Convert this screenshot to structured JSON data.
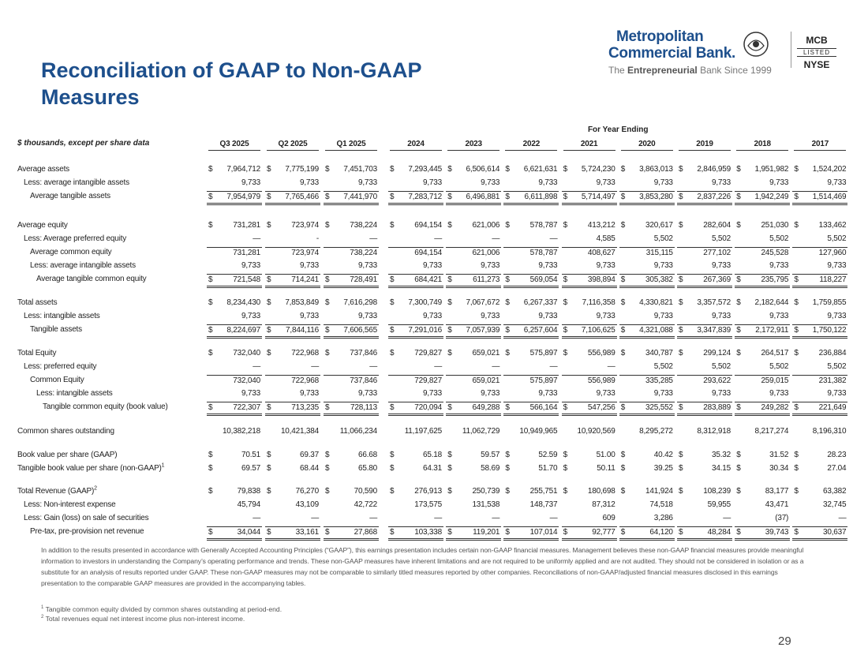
{
  "header": {
    "title": "Reconciliation of GAAP to Non-GAAP Measures",
    "logo": {
      "line1": "Metropolitan",
      "line2": "Commercial Bank.",
      "tag_pre": "The",
      "tag_bold": "Entrepreneurial",
      "tag_post": "Bank Since 1999"
    },
    "listing": [
      "MCB",
      "LISTED",
      "NYSE"
    ]
  },
  "table": {
    "units_label": "$ thousands, except per share data",
    "group_label": "For Year Ending",
    "columns": [
      "Q3 2025",
      "Q2 2025",
      "Q1 2025",
      "2024",
      "2023",
      "2022",
      "2021",
      "2020",
      "2019",
      "2018",
      "2017"
    ],
    "sections": [
      {
        "rows": [
          {
            "label": "Average assets",
            "symbol": "$",
            "values": [
              "7,964,712",
              "7,775,199",
              "7,451,703",
              "7,293,445",
              "6,506,614",
              "6,621,631",
              "5,724,230",
              "3,863,013",
              "2,846,959",
              "1,951,982",
              "1,524,202"
            ]
          },
          {
            "label": "Less: average intangible assets",
            "values": [
              "9,733",
              "9,733",
              "9,733",
              "9,733",
              "9,733",
              "9,733",
              "9,733",
              "9,733",
              "9,733",
              "9,733",
              "9,733"
            ]
          },
          {
            "label": "Average tangible assets",
            "symbol": "$",
            "values": [
              "7,954,979",
              "7,765,466",
              "7,441,970",
              "7,283,712",
              "6,496,881",
              "6,611,898",
              "5,714,497",
              "3,853,280",
              "2,837,226",
              "1,942,249",
              "1,514,469"
            ]
          }
        ]
      },
      {
        "rows": [
          {
            "label": "Average equity",
            "symbol": "$",
            "values": [
              "731,281",
              "723,974",
              "738,224",
              "694,154",
              "621,006",
              "578,787",
              "413,212",
              "320,617",
              "282,604",
              "251,030",
              "133,462"
            ]
          },
          {
            "label": "Less: Average preferred equity",
            "values": [
              "—",
              "-",
              "—",
              "—",
              "—",
              "—",
              "4,585",
              "5,502",
              "5,502",
              "5,502",
              "5,502"
            ]
          },
          {
            "label": "Average common equity",
            "values": [
              "731,281",
              "723,974",
              "738,224",
              "694,154",
              "621,006",
              "578,787",
              "408,627",
              "315,115",
              "277,102",
              "245,528",
              "127,960"
            ]
          },
          {
            "label": "Less: average intangible assets",
            "values": [
              "9,733",
              "9,733",
              "9,733",
              "9,733",
              "9,733",
              "9,733",
              "9,733",
              "9,733",
              "9,733",
              "9,733",
              "9,733"
            ]
          },
          {
            "label": "Average tangible common equity",
            "symbol": "$",
            "values": [
              "721,548",
              "714,241",
              "728,491",
              "684,421",
              "611,273",
              "569,054",
              "398,894",
              "305,382",
              "267,369",
              "235,795",
              "118,227"
            ]
          }
        ]
      },
      {
        "rows": [
          {
            "label": "Total assets",
            "symbol": "$",
            "values": [
              "8,234,430",
              "7,853,849",
              "7,616,298",
              "7,300,749",
              "7,067,672",
              "6,267,337",
              "7,116,358",
              "4,330,821",
              "3,357,572",
              "2,182,644",
              "1,759,855"
            ]
          },
          {
            "label": "Less: intangible assets",
            "values": [
              "9,733",
              "9,733",
              "9,733",
              "9,733",
              "9,733",
              "9,733",
              "9,733",
              "9,733",
              "9,733",
              "9,733",
              "9,733"
            ]
          },
          {
            "label": "Tangible assets",
            "symbol": "$",
            "values": [
              "8,224,697",
              "7,844,116",
              "7,606,565",
              "7,291,016",
              "7,057,939",
              "6,257,604",
              "7,106,625",
              "4,321,088",
              "3,347,839",
              "2,172,911",
              "1,750,122"
            ]
          }
        ]
      },
      {
        "rows": [
          {
            "label": "Total Equity",
            "symbol": "$",
            "values": [
              "732,040",
              "722,968",
              "737,846",
              "729,827",
              "659,021",
              "575,897",
              "556,989",
              "340,787",
              "299,124",
              "264,517",
              "236,884"
            ]
          },
          {
            "label": "Less: preferred equity",
            "values": [
              "—",
              "—",
              "—",
              "—",
              "—",
              "—",
              "—",
              "5,502",
              "5,502",
              "5,502",
              "5,502"
            ]
          },
          {
            "label": "Common Equity",
            "values": [
              "732,040",
              "722,968",
              "737,846",
              "729,827",
              "659,021",
              "575,897",
              "556,989",
              "335,285",
              "293,622",
              "259,015",
              "231,382"
            ]
          },
          {
            "label": "Less: intangible assets",
            "values": [
              "9,733",
              "9,733",
              "9,733",
              "9,733",
              "9,733",
              "9,733",
              "9,733",
              "9,733",
              "9,733",
              "9,733",
              "9,733"
            ]
          },
          {
            "label": "Tangible common equity (book value)",
            "symbol": "$",
            "values": [
              "722,307",
              "713,235",
              "728,113",
              "720,094",
              "649,288",
              "566,164",
              "547,256",
              "325,552",
              "283,889",
              "249,282",
              "221,649"
            ]
          }
        ]
      },
      {
        "rows": [
          {
            "label": "Common shares outstanding",
            "values": [
              "10,382,218",
              "10,421,384",
              "11,066,234",
              "11,197,625",
              "11,062,729",
              "10,949,965",
              "10,920,569",
              "8,295,272",
              "8,312,918",
              "8,217,274",
              "8,196,310"
            ]
          }
        ]
      },
      {
        "rows": [
          {
            "label": "Book value per share (GAAP)",
            "symbol": "$",
            "values": [
              "70.51",
              "69.37",
              "66.68",
              "65.18",
              "59.57",
              "52.59",
              "51.00",
              "40.42",
              "35.32",
              "31.52",
              "28.23"
            ]
          },
          {
            "label": "Tangible book value per share (non-GAAP)",
            "note": "1",
            "symbol": "$",
            "values": [
              "69.57",
              "68.44",
              "65.80",
              "64.31",
              "58.69",
              "51.70",
              "50.11",
              "39.25",
              "34.15",
              "30.34",
              "27.04"
            ]
          }
        ]
      },
      {
        "rows": [
          {
            "label": "Total Revenue (GAAP)",
            "note": "2",
            "symbol": "$",
            "values": [
              "79,838",
              "76,270",
              "70,590",
              "276,913",
              "250,739",
              "255,751",
              "180,698",
              "141,924",
              "108,239",
              "83,177",
              "63,382"
            ]
          },
          {
            "label": "Less: Non-interest expense",
            "values": [
              "45,794",
              "43,109",
              "42,722",
              "173,575",
              "131,538",
              "148,737",
              "87,312",
              "74,518",
              "59,955",
              "43,471",
              "32,745"
            ]
          },
          {
            "label": "Less: Gain (loss) on sale of securities",
            "values": [
              "—",
              "—",
              "—",
              "—",
              "—",
              "—",
              "609",
              "3,286",
              "—",
              "(37)",
              "—"
            ]
          },
          {
            "label": "Pre-tax, pre-provision net revenue",
            "symbol": "$",
            "values": [
              "34,044",
              "33,161",
              "27,868",
              "103,338",
              "119,201",
              "107,014",
              "92,777",
              "64,120",
              "48,284",
              "39,743",
              "30,637"
            ]
          }
        ]
      }
    ]
  },
  "notes": {
    "paragraph": "In addition to the results presented in accordance with Generally Accepted Accounting Principles (“GAAP”), this earnings presentation includes certain non-GAAP financial measures. Management believes these non-GAAP financial measures provide meaningful information to investors in understanding the Company’s operating performance and trends. These non-GAAP measures have inherent limitations and are not required to be uniformly applied and are not audited. They should not be considered in isolation or as a substitute for an analysis of results reported under GAAP. These non-GAAP measures may not be comparable to similarly titled measures reported by other companies. Reconciliations of non-GAAP/adjusted financial measures disclosed in this earnings presentation to the comparable GAAP measures are provided in the accompanying tables.",
    "footnotes": [
      {
        "mark": "1",
        "text": "Tangible common equity divided by common shares outstanding at period-end."
      },
      {
        "mark": "2",
        "text": "Total revenues equal net interest income plus non-interest income."
      }
    ]
  },
  "page_number": "29"
}
